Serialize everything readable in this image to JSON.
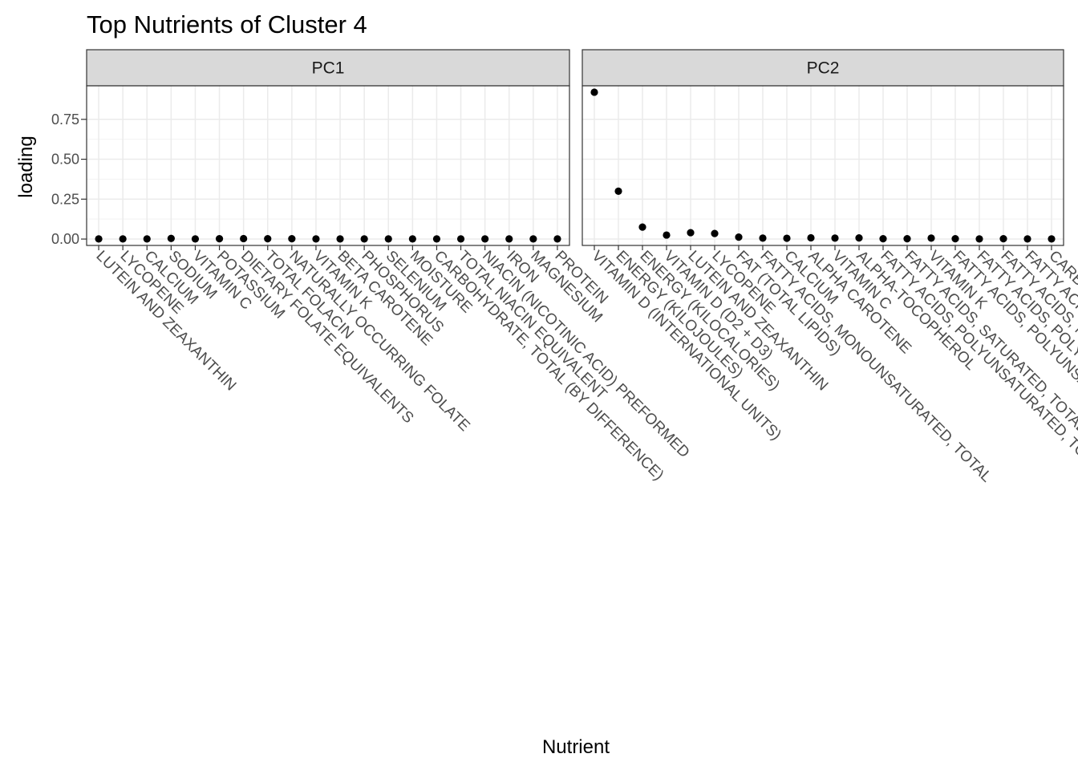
{
  "chart_data": {
    "type": "scatter",
    "title": "Top Nutrients of Cluster 4",
    "xlabel": "Nutrient",
    "ylabel": "loading",
    "y_ticks": [
      "0.00",
      "0.25",
      "0.50",
      "0.75"
    ],
    "ylim": [
      -0.04,
      0.96
    ],
    "grid": true,
    "legend": "none",
    "facets": [
      {
        "label": "PC1",
        "categories": [
          "LUTEIN AND ZEAXANTHIN",
          "LYCOPENE",
          "CALCIUM",
          "SODIUM",
          "VITAMIN C",
          "POTASSIUM",
          "DIETARY FOLATE EQUIVALENTS",
          "TOTAL FOLACIN",
          "NATURALLY OCCURRING FOLATE",
          "VITAMIN K",
          "BETA CAROTENE",
          "PHOSPHORUS",
          "SELENIUM",
          "MOISTURE",
          "CARBOHYDRATE, TOTAL (BY DIFFERENCE)",
          "TOTAL NIACIN EQUIVALENT",
          "NIACIN (NICOTINIC ACID) PREFORMED",
          "IRON",
          "MAGNESIUM",
          "PROTEIN"
        ],
        "values": [
          0.001,
          0.001,
          0.001,
          0.004,
          0.001,
          0.002,
          0.003,
          0.002,
          0.002,
          0.001,
          0.001,
          0.001,
          0.001,
          0.001,
          0.001,
          0.001,
          0.001,
          0.001,
          0.001,
          0.001
        ]
      },
      {
        "label": "PC2",
        "categories": [
          "VITAMIN D (INTERNATIONAL UNITS)",
          "ENERGY (KILOJOULES)",
          "ENERGY (KILOCALORIES)",
          "VITAMIN D (D2 + D3)",
          "LUTEIN AND ZEAXANTHIN",
          "LYCOPENE",
          "FAT (TOTAL LIPIDS)",
          "FATTY ACIDS, MONOUNSATURATED, TOTAL",
          "CALCIUM",
          "ALPHA CAROTENE",
          "VITAMIN C",
          "ALPHA-TOCOPHEROL",
          "FATTY ACIDS, POLYUNSATURATED, TOTAL",
          "FATTY ACIDS, SATURATED, TOTAL",
          "VITAMIN K",
          "FATTY ACIDS, POLYUNSATURATED",
          "FATTY ACIDS, POLYUNSATURATED",
          "FATTY ACIDS, MONOUNSATURATED",
          "FATTY ACIDS, POLYUNSATURATED",
          "CARBOHYDRATE"
        ],
        "values": [
          0.92,
          0.3,
          0.075,
          0.025,
          0.04,
          0.035,
          0.012,
          0.006,
          0.005,
          0.008,
          0.006,
          0.007,
          0.002,
          0.002,
          0.006,
          0.002,
          0.001,
          0.002,
          0.001,
          0.001
        ]
      }
    ]
  }
}
